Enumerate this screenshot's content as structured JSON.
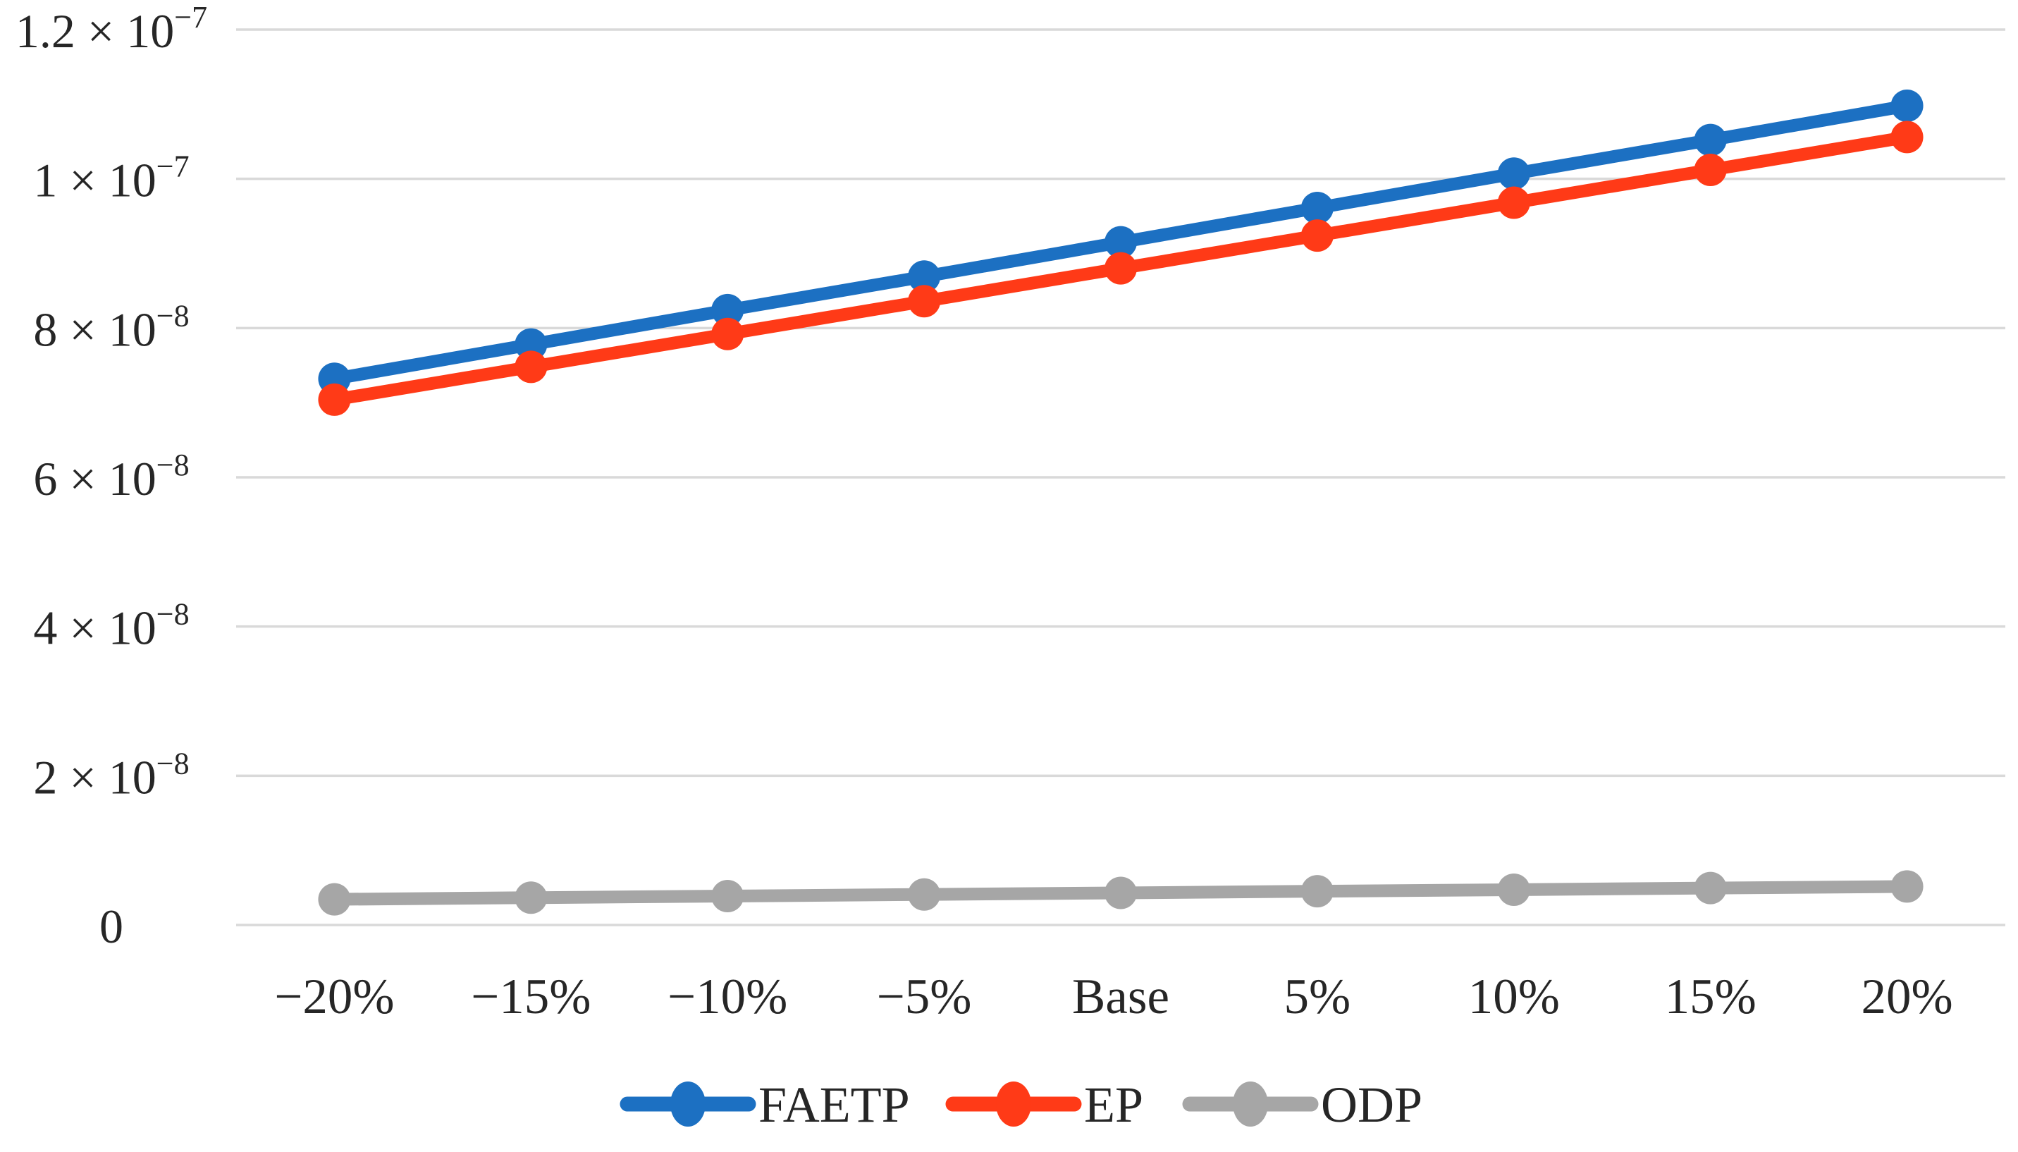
{
  "chart_data": {
    "type": "line",
    "title": "",
    "xlabel": "",
    "ylabel": "",
    "grid": true,
    "legend_position": "bottom",
    "background_color": "#ffffff",
    "grid_color": "#d9d9d9",
    "text_color": "#262626",
    "ylim": [
      0,
      1.2e-07
    ],
    "categories": [
      "−20%",
      "−15%",
      "−10%",
      "−5%",
      "Base",
      "5%",
      "10%",
      "15%",
      "20%"
    ],
    "yticks": [
      {
        "mantissa": "0",
        "exp": ""
      },
      {
        "mantissa": "2 × 10",
        "exp": "−8"
      },
      {
        "mantissa": "4 × 10",
        "exp": "−8"
      },
      {
        "mantissa": "6 × 10",
        "exp": "−8"
      },
      {
        "mantissa": "8 × 10",
        "exp": "−8"
      },
      {
        "mantissa": "1 × 10",
        "exp": "−7"
      },
      {
        "mantissa": "1.2 × 10",
        "exp": "−7"
      }
    ],
    "series": [
      {
        "name": "FAETP",
        "color": "#1c70c2",
        "values": [
          7.32e-08,
          7.78e-08,
          8.24e-08,
          8.69e-08,
          9.15e-08,
          9.61e-08,
          1.007e-07,
          1.052e-07,
          1.098e-07
        ]
      },
      {
        "name": "EP",
        "color": "#ff3a17",
        "values": [
          7.04e-08,
          7.48e-08,
          7.92e-08,
          8.36e-08,
          8.8e-08,
          9.24e-08,
          9.68e-08,
          1.012e-07,
          1.056e-07
        ]
      },
      {
        "name": "ODP",
        "color": "#a6a6a6",
        "values": [
          3.44e-09,
          3.66e-09,
          3.87e-09,
          4.09e-09,
          4.3e-09,
          4.52e-09,
          4.73e-09,
          4.95e-09,
          5.16e-09
        ]
      }
    ]
  }
}
